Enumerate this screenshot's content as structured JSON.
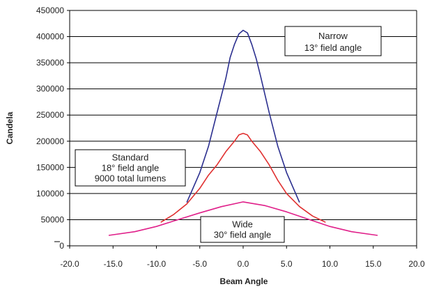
{
  "chart_data": {
    "type": "line",
    "title": "",
    "xlabel": "Beam Angle",
    "ylabel": "Candela",
    "xlim": [
      -20,
      20
    ],
    "ylim": [
      0,
      450000
    ],
    "x_ticks": [
      "-20.0",
      "-15.0",
      "-10.0",
      "-5.0",
      "0.0",
      "5.0",
      "10.0",
      "15.0",
      "20.0"
    ],
    "y_ticks": [
      "0",
      "50000",
      "100000",
      "150000",
      "200000",
      "250000",
      "300000",
      "350000",
      "400000",
      "450000"
    ],
    "grid": "horizontal",
    "series": [
      {
        "name": "Narrow",
        "color": "#2b2f8f",
        "x": [
          -6.5,
          -5.0,
          -4.0,
          -3.0,
          -2.0,
          -1.5,
          -1.0,
          -0.5,
          0.0,
          0.5,
          1.0,
          1.5,
          2.0,
          3.0,
          4.0,
          5.0,
          6.5
        ],
        "y": [
          83000,
          140000,
          190000,
          255000,
          320000,
          360000,
          385000,
          405000,
          412000,
          407000,
          385000,
          358000,
          325000,
          255000,
          190000,
          140000,
          83000
        ]
      },
      {
        "name": "Standard",
        "color": "#e03030",
        "x": [
          -9.5,
          -8.0,
          -6.5,
          -5.0,
          -4.0,
          -3.0,
          -2.0,
          -1.0,
          -0.5,
          0.0,
          0.5,
          1.0,
          2.0,
          3.0,
          4.0,
          5.0,
          6.5,
          8.0,
          9.5
        ],
        "y": [
          45000,
          60000,
          80000,
          110000,
          135000,
          155000,
          180000,
          200000,
          212000,
          215000,
          212000,
          200000,
          180000,
          155000,
          125000,
          100000,
          75000,
          57000,
          45000
        ]
      },
      {
        "name": "Wide",
        "color": "#e0208a",
        "x": [
          -15.5,
          -12.5,
          -10.0,
          -7.5,
          -5.0,
          -2.5,
          0.0,
          2.5,
          5.0,
          7.5,
          10.0,
          12.5,
          15.5
        ],
        "y": [
          20000,
          27000,
          37000,
          50000,
          63000,
          75000,
          84000,
          77000,
          65000,
          51000,
          37000,
          27000,
          20000
        ]
      }
    ],
    "annotations": [
      {
        "id": "narrow",
        "lines": [
          "Narrow",
          "13° field angle"
        ]
      },
      {
        "id": "standard",
        "lines": [
          "Standard",
          "18° field angle",
          "9000 total lumens"
        ]
      },
      {
        "id": "wide",
        "lines": [
          "Wide",
          "30° field angle"
        ]
      }
    ]
  }
}
